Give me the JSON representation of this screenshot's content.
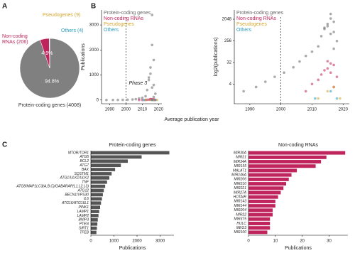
{
  "panel_labels": [
    "A",
    "B",
    "C"
  ],
  "chart_data": [
    {
      "type": "pie",
      "categories": [
        "Protein-coding genes (4008)",
        "Non-coding RNAs (206)",
        "Pseudogenes (9)",
        "Others (4)"
      ],
      "values": [
        94.8,
        4.9,
        0.2,
        0.1
      ],
      "value_labels": [
        "94.8%",
        "4.9%",
        null,
        null
      ],
      "colors": [
        "#808080",
        "#c0245c",
        "#d4a72c",
        "#2a9dc0"
      ]
    },
    {
      "type": "scatter",
      "xlabel": "Average publication year",
      "ylabel": "Publications",
      "xlim": [
        1985,
        2022
      ],
      "xticks": [
        1990,
        2000,
        2010,
        2020
      ],
      "ylim": [
        -150,
        3600
      ],
      "yticks": [
        0,
        1000,
        2000,
        3000
      ],
      "yscale": "linear",
      "vline": 2000,
      "annotation": "Phase 3",
      "legend": "top-left",
      "series": [
        {
          "name": "Protein-coding genes",
          "color": "#666666",
          "x": [
            1988,
            1992,
            1995,
            1998,
            2001,
            2004,
            2006,
            2008,
            2010,
            2012,
            2013,
            2014,
            2015,
            2016,
            2016,
            2017,
            2017,
            2018,
            2015,
            2014,
            2016,
            2017
          ],
          "values": [
            2,
            3,
            5,
            8,
            12,
            20,
            35,
            60,
            90,
            150,
            400,
            800,
            1300,
            3400,
            2200,
            1600,
            600,
            250,
            1050,
            900,
            500,
            120
          ]
        },
        {
          "name": "Non-coding RNAs",
          "color": "#c0245c",
          "x": [
            2008,
            2010,
            2012,
            2013,
            2014,
            2015,
            2016,
            2017,
            2018,
            2015,
            2016,
            2017
          ],
          "values": [
            2,
            4,
            6,
            10,
            15,
            36,
            29,
            25,
            8,
            18,
            12,
            3
          ]
        },
        {
          "name": "Pseudogenes",
          "color": "#d4a72c",
          "x": [
            2012,
            2015,
            2017,
            2019
          ],
          "values": [
            1,
            2,
            3,
            1
          ]
        },
        {
          "name": "Others",
          "color": "#2a9dc0",
          "x": [
            2011,
            2016,
            2018
          ],
          "values": [
            1,
            2,
            1
          ]
        }
      ]
    },
    {
      "type": "scatter",
      "ylabel": "log2(publications)",
      "xlim": [
        1985,
        2022
      ],
      "xticks": [
        1990,
        2000,
        2010,
        2020
      ],
      "ylim": [
        0.6,
        5000
      ],
      "yticks": [
        4,
        32,
        256,
        2048
      ],
      "yscale": "log",
      "vline": 2000,
      "legend": "top-left",
      "series": [
        {
          "name": "Protein-coding genes",
          "color": "#666666",
          "x": [
            1988,
            1992,
            1995,
            1998,
            2001,
            2004,
            2006,
            2008,
            2010,
            2012,
            2013,
            2014,
            2015,
            2016,
            2016,
            2017,
            2017,
            2018,
            2015,
            2014,
            2016,
            2017
          ],
          "values": [
            2,
            3,
            5,
            8,
            12,
            20,
            35,
            60,
            90,
            150,
            400,
            800,
            1300,
            3400,
            2200,
            1600,
            600,
            250,
            1050,
            900,
            500,
            120
          ]
        },
        {
          "name": "Non-coding RNAs",
          "color": "#c0245c",
          "x": [
            2008,
            2010,
            2012,
            2013,
            2014,
            2015,
            2016,
            2017,
            2018,
            2015,
            2016,
            2017
          ],
          "values": [
            2,
            4,
            6,
            10,
            15,
            36,
            29,
            25,
            8,
            18,
            12,
            3
          ]
        },
        {
          "name": "Pseudogenes",
          "color": "#d4a72c",
          "x": [
            2012,
            2015,
            2017,
            2019
          ],
          "values": [
            1,
            2,
            3,
            1
          ]
        },
        {
          "name": "Others",
          "color": "#2a9dc0",
          "x": [
            2011,
            2016,
            2018
          ],
          "values": [
            1,
            2,
            1
          ]
        }
      ]
    },
    {
      "type": "hbar",
      "title": "Protein-coding genes",
      "xlabel": "Publications",
      "color": "#555555",
      "xlim": [
        0,
        3600
      ],
      "xticks": [
        0,
        1000,
        2000,
        3000
      ],
      "categories": [
        "MTOR/TOR1",
        "ATG5",
        "BCL2",
        "ATG7",
        "BAX",
        "SQSTM1",
        "ATG1/ULK1/ULK2",
        "TNF",
        "ATG8/MAP1LC3(A,B,C)/GABARAP(L1,L2,L3)",
        "ATG12",
        "BECN1/VPS30",
        "IL6",
        "ATG16/ATG16L1",
        "PINK1",
        "LAMP1",
        "LAMP2",
        "BNIP3",
        "PTEN",
        "SIRT1",
        "TFEB"
      ],
      "values": [
        3400,
        2200,
        1600,
        1300,
        1050,
        900,
        800,
        700,
        620,
        560,
        520,
        480,
        440,
        400,
        360,
        330,
        300,
        280,
        260,
        240
      ]
    },
    {
      "type": "hbar",
      "title": "Non-coding RNAs",
      "xlabel": "Publications",
      "color": "#c0245c",
      "xlim": [
        0,
        37
      ],
      "xticks": [
        0,
        10,
        20,
        30
      ],
      "categories": [
        "MIR30A",
        "MIR21",
        "MIR34A",
        "MIR155",
        "MALAT1",
        "MIR146A",
        "MIR206",
        "MIR210",
        "MIR221",
        "MIR27A",
        "HOTAIR",
        "MIR143",
        "MIR144",
        "MIR204",
        "MIR22",
        "MIR375",
        "HULC",
        "MEG3",
        "MIR100"
      ],
      "values": [
        36,
        29,
        27,
        25,
        18,
        16,
        15,
        14,
        13,
        12,
        11,
        10,
        10,
        9,
        9,
        8,
        8,
        8,
        7
      ]
    }
  ]
}
